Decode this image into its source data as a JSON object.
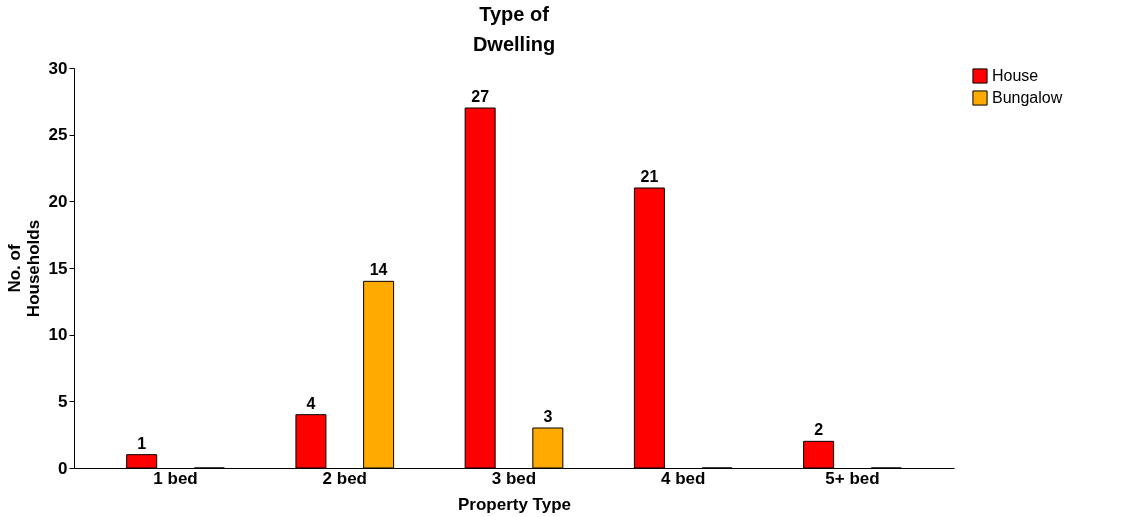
{
  "chart_data": {
    "type": "bar",
    "title": "Type of Dwelling",
    "xlabel": "Property     Type",
    "ylabel": "No. of Households",
    "categories": [
      "1 bed",
      "2 bed",
      "3 bed",
      "4 bed",
      "5+ bed"
    ],
    "series": [
      {
        "name": "House",
        "color": "#ff0000",
        "values": [
          1,
          4,
          27,
          21,
          2
        ],
        "value_labels": [
          "1",
          "4",
          "27",
          "21",
          "2"
        ]
      },
      {
        "name": "Bungalow",
        "color": "#ffaa00",
        "values": [
          0,
          14,
          3,
          0,
          0
        ],
        "value_labels": [
          null,
          "14",
          "3",
          null,
          null
        ]
      }
    ],
    "ylim": [
      0,
      30
    ],
    "yticks": [
      0,
      5,
      10,
      15,
      20,
      25,
      30
    ],
    "grid": false,
    "legend": "right"
  }
}
